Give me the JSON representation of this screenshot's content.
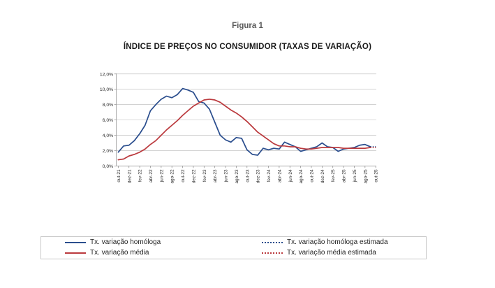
{
  "figure_label": "Figura 1",
  "title": "ÍNDICE DE PREÇOS NO CONSUMIDOR (TAXAS DE VARIAÇÃO)",
  "colors": {
    "homologa_blue": "#2B4E8E",
    "media_red": "#BB3A3E",
    "gridline": "#C3C3C3",
    "axis": "#8C8C8C",
    "tick_text": "#262626",
    "figure_label_gray": "#595959",
    "legend_border": "#C9C9C9"
  },
  "chart_data": {
    "type": "line",
    "title": "ÍNDICE DE PREÇOS NO CONSUMIDOR (TAXAS DE VARIAÇÃO)",
    "xlabel": "",
    "ylabel": "",
    "ylim": [
      0,
      12
    ],
    "grid": true,
    "legend_position": "bottom",
    "y_tick_values": [
      0,
      2,
      4,
      6,
      8,
      10,
      12
    ],
    "y_tick_labels": [
      "0,0%",
      "2,0%",
      "4,0%",
      "6,0%",
      "8,0%",
      "10,0%",
      "12,0%"
    ],
    "x": [
      "out-21",
      "nov-21",
      "dez-21",
      "jan-22",
      "fev-22",
      "mar-22",
      "abr-22",
      "mai-22",
      "jun-22",
      "jul-22",
      "ago-22",
      "set-22",
      "out-22",
      "nov-22",
      "dez-22",
      "jan-23",
      "fev-23",
      "mar-23",
      "abr-23",
      "mai-23",
      "jun-23",
      "jul-23",
      "ago-23",
      "set-23",
      "out-23",
      "nov-23",
      "dez-23",
      "jan-24",
      "fev-24",
      "mar-24",
      "abr-24",
      "mai-24",
      "jun-24",
      "jul-24",
      "ago-24",
      "set-24",
      "out-24",
      "nov-24",
      "dez-24",
      "jan-25",
      "fev-25",
      "mar-25",
      "abr-25",
      "mai-25",
      "jun-25",
      "jul-25",
      "ago-25",
      "set-25",
      "out-25"
    ],
    "x_tick_labels": [
      "out-21",
      "dez-21",
      "fev-22",
      "abr-22",
      "jun-22",
      "ago-22",
      "out-22",
      "dez-22",
      "fev-23",
      "abr-23",
      "jun-23",
      "ago-23",
      "out-23",
      "dez-23",
      "fev-24",
      "abr-24",
      "jun-24",
      "ago-24",
      "out-24",
      "dez-24",
      "fev-25",
      "abr-25",
      "jun-25",
      "ago-25",
      "out-25"
    ],
    "x_tick_every": 2,
    "series": [
      {
        "name": "Tx. variação homóloga",
        "color": "#2B4E8E",
        "style": "solid",
        "values": [
          1.8,
          2.6,
          2.7,
          3.3,
          4.2,
          5.3,
          7.2,
          8.0,
          8.7,
          9.1,
          8.9,
          9.3,
          10.1,
          9.9,
          9.6,
          8.4,
          8.2,
          7.4,
          5.7,
          4.0,
          3.4,
          3.1,
          3.7,
          3.6,
          2.1,
          1.5,
          1.4,
          2.3,
          2.1,
          2.3,
          2.2,
          3.1,
          2.8,
          2.5,
          1.9,
          2.1,
          2.3,
          2.5,
          3.0,
          2.5,
          2.4,
          1.9,
          2.2,
          2.3,
          2.4,
          2.7,
          2.8,
          2.5
        ]
      },
      {
        "name": "Tx. variação média",
        "color": "#BB3A3E",
        "style": "solid",
        "values": [
          0.8,
          0.9,
          1.3,
          1.5,
          1.8,
          2.2,
          2.8,
          3.3,
          4.0,
          4.7,
          5.3,
          5.9,
          6.6,
          7.2,
          7.8,
          8.2,
          8.6,
          8.7,
          8.6,
          8.3,
          7.8,
          7.3,
          6.9,
          6.4,
          5.8,
          5.1,
          4.4,
          3.9,
          3.4,
          2.9,
          2.6,
          2.6,
          2.5,
          2.5,
          2.3,
          2.2,
          2.2,
          2.3,
          2.4,
          2.4,
          2.4,
          2.4,
          2.3,
          2.3,
          2.3,
          2.3,
          2.3,
          2.4
        ]
      },
      {
        "name": "Tx. variação homóloga estimada",
        "color": "#2B4E8E",
        "style": "dotted",
        "x": [
          "set-25",
          "out-25"
        ],
        "values": [
          2.5,
          2.5
        ]
      },
      {
        "name": "Tx. variação média  estimada",
        "color": "#BB3A3E",
        "style": "dotted",
        "x": [
          "set-25",
          "out-25"
        ],
        "values": [
          2.4,
          2.4
        ]
      }
    ]
  },
  "legend": {
    "items": [
      {
        "label": "Tx. variação homóloga",
        "color": "#2B4E8E",
        "style": "solid"
      },
      {
        "label": "Tx. variação média",
        "color": "#BB3A3E",
        "style": "solid"
      },
      {
        "label": "Tx. variação homóloga estimada",
        "color": "#2B4E8E",
        "style": "dotted"
      },
      {
        "label": "Tx. variação média  estimada",
        "color": "#BB3A3E",
        "style": "dotted"
      }
    ]
  }
}
